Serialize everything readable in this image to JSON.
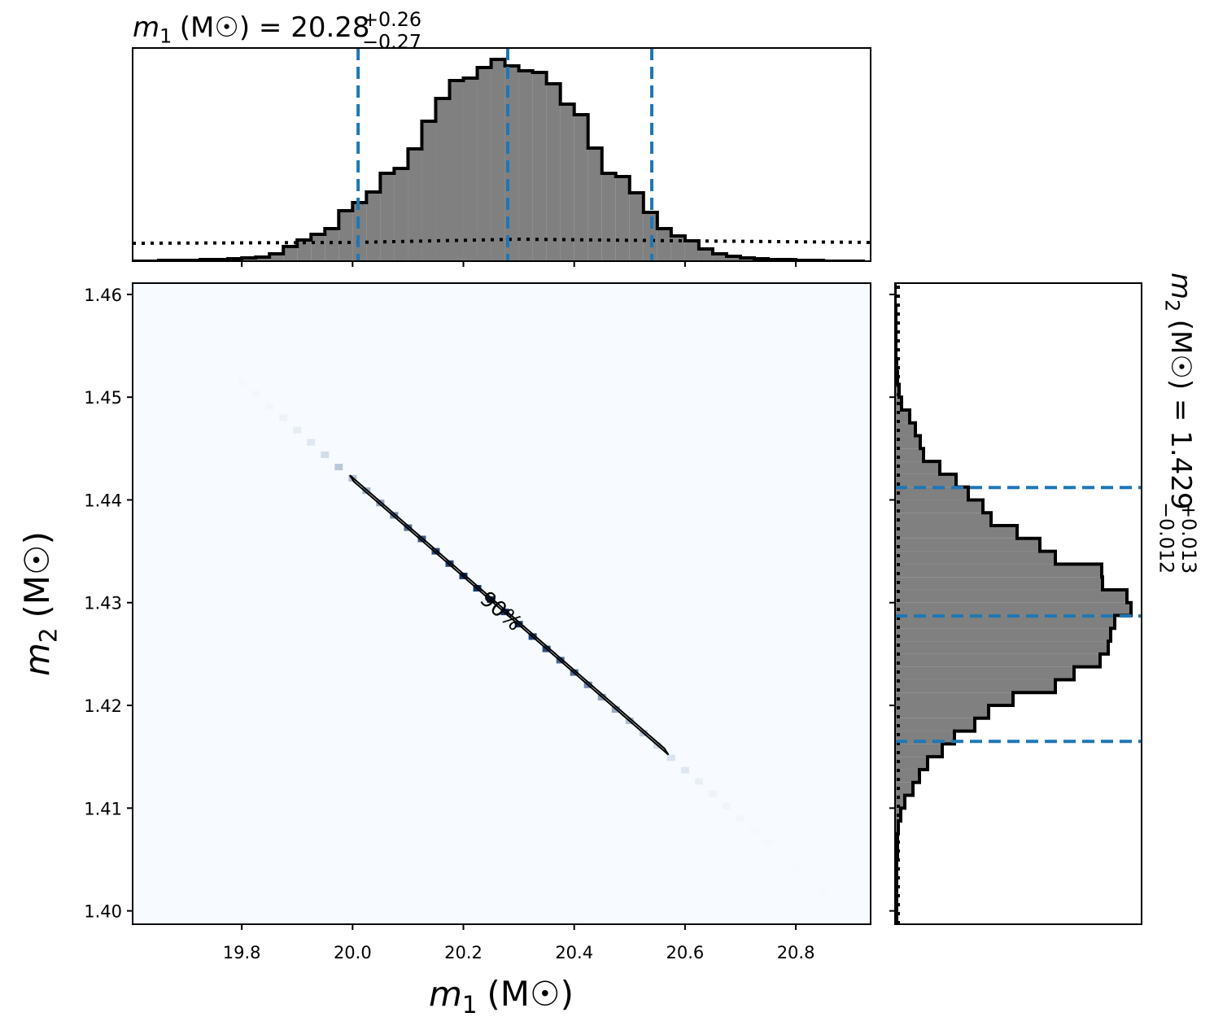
{
  "chart_data": [
    {
      "type": "histogram",
      "orientation": "vertical",
      "title": {
        "variable": "m",
        "subscript": "1",
        "text": "(M☉) = 20.28",
        "upper": "+0.26",
        "lower": "−0.27"
      },
      "bins": [
        19.6,
        19.625,
        19.65,
        19.675,
        19.7,
        19.725,
        19.75,
        19.775,
        19.8,
        19.825,
        19.85,
        19.875,
        19.9,
        19.925,
        19.95,
        19.975,
        20,
        20.025,
        20.05,
        20.075,
        20.1,
        20.125,
        20.15,
        20.175,
        20.2,
        20.225,
        20.25,
        20.275,
        20.3,
        20.325,
        20.35,
        20.375,
        20.4,
        20.425,
        20.45,
        20.475,
        20.5,
        20.525,
        20.55,
        20.575,
        20.6,
        20.625,
        20.65,
        20.675,
        20.7,
        20.725,
        20.75,
        20.775,
        20.8,
        20.825,
        20.85,
        20.875,
        20.9,
        20.925
      ],
      "values": [
        0,
        0,
        1,
        1,
        1,
        2,
        2,
        3,
        4,
        5,
        9,
        18,
        26,
        33,
        40,
        62,
        72,
        85,
        108,
        114,
        138,
        172,
        200,
        222,
        225,
        238,
        248,
        240,
        234,
        232,
        218,
        193,
        180,
        139,
        108,
        104,
        84,
        60,
        40,
        31,
        25,
        15,
        9,
        6,
        4,
        3,
        2,
        2,
        1,
        1,
        0,
        0,
        0
      ],
      "color": "#808080",
      "edgecolor": "#000000",
      "prior": {
        "x": [
          19.603,
          20.0,
          20.3,
          20.6,
          20.935
        ],
        "values": [
          22,
          23,
          27,
          25,
          23
        ]
      },
      "quantiles": [
        20.01,
        20.28,
        20.54
      ],
      "quantile_color": "#1f77b4",
      "xlim": [
        19.603,
        20.935
      ],
      "ylim": [
        0,
        262
      ],
      "xticks": [
        19.8,
        {
          "value": 20.0,
          "label": "20.0"
        },
        20.2,
        20.4,
        20.6,
        20.8
      ]
    },
    {
      "type": "heatmap",
      "x": [
        19.8,
        19.825,
        19.85,
        19.875,
        19.9,
        19.925,
        19.95,
        19.975,
        20,
        20.025,
        20.05,
        20.075,
        20.1,
        20.125,
        20.15,
        20.175,
        20.2,
        20.225,
        20.25,
        20.275,
        20.3,
        20.325,
        20.35,
        20.375,
        20.4,
        20.425,
        20.45,
        20.475,
        20.5,
        20.525,
        20.55,
        20.575,
        20.6,
        20.625,
        20.65,
        20.675,
        20.7,
        20.725,
        20.75,
        20.775,
        20.8,
        20.825,
        20.85,
        20.875,
        20.9
      ],
      "y": [
        1.4515,
        1.4503,
        1.4491,
        1.448,
        1.4468,
        1.4456,
        1.4444,
        1.4432,
        1.4421,
        1.4409,
        1.4397,
        1.4385,
        1.4373,
        1.4362,
        1.435,
        1.4338,
        1.4326,
        1.4314,
        1.4303,
        1.4291,
        1.4279,
        1.4267,
        1.4255,
        1.4244,
        1.4232,
        1.422,
        1.4208,
        1.4196,
        1.4185,
        1.4173,
        1.4161,
        1.4149,
        1.4137,
        1.4126,
        1.4114,
        1.4102,
        1.409,
        1.4078,
        1.4067,
        1.4055,
        1.4043,
        1.4031,
        1.4019,
        1.4008,
        1.3996
      ],
      "values": [
        0.01,
        0.02,
        0.02,
        0.04,
        0.07,
        0.1,
        0.15,
        0.25,
        0.3,
        0.35,
        0.45,
        0.55,
        0.68,
        0.8,
        0.88,
        0.9,
        0.95,
        0.98,
        1.0,
        0.96,
        0.93,
        0.92,
        0.85,
        0.75,
        0.7,
        0.55,
        0.43,
        0.4,
        0.3,
        0.22,
        0.15,
        0.12,
        0.1,
        0.06,
        0.04,
        0.03,
        0.02,
        0.01,
        0.01,
        0.005,
        0.005,
        0.003,
        0.003,
        0.002,
        0.002
      ],
      "colormap": [
        "#f7fbff",
        "#08306b"
      ],
      "contour": {
        "label": "90%",
        "x": [
          19.995,
          20.002,
          20.57,
          20.563
        ],
        "y": [
          1.4424,
          1.4418,
          1.4152,
          1.4158
        ]
      },
      "xlim": [
        19.603,
        20.935
      ],
      "ylim": [
        1.3987,
        1.4611
      ],
      "xticks": [
        19.8,
        {
          "value": 20.0,
          "label": "20.0"
        },
        20.2,
        20.4,
        20.6,
        20.8
      ],
      "yticks": [
        {
          "value": 1.4,
          "label": "1.40"
        },
        1.41,
        1.42,
        1.43,
        1.44,
        1.45,
        1.46
      ],
      "xlabel": {
        "variable": "m",
        "subscript": "1",
        "text": "(M☉)"
      },
      "ylabel": {
        "variable": "m",
        "subscript": "2",
        "text": "(M☉)"
      }
    },
    {
      "type": "histogram",
      "orientation": "horizontal",
      "title": {
        "variable": "m",
        "subscript": "2",
        "text": "(M☉) = 1.429",
        "upper": "+0.013",
        "lower": "−0.012"
      },
      "bins": [
        1.3975,
        1.39875,
        1.4,
        1.40125,
        1.4025,
        1.40375,
        1.405,
        1.40625,
        1.4075,
        1.40875,
        1.41,
        1.41125,
        1.4125,
        1.41375,
        1.415,
        1.41625,
        1.4175,
        1.41875,
        1.42,
        1.42125,
        1.4225,
        1.42375,
        1.425,
        1.42625,
        1.4275,
        1.42875,
        1.43,
        1.43125,
        1.4325,
        1.43375,
        1.435,
        1.43625,
        1.4375,
        1.43875,
        1.44,
        1.44125,
        1.4425,
        1.44375,
        1.445,
        1.44625,
        1.4475,
        1.44875,
        1.45,
        1.45125,
        1.4525,
        1.45375,
        1.455,
        1.45625,
        1.4575,
        1.45875,
        1.46,
        1.46125,
        1.4625
      ],
      "values": [
        1,
        2,
        2,
        2,
        2,
        2,
        3,
        3,
        4,
        7,
        12,
        22,
        30,
        40,
        58,
        73,
        98,
        115,
        145,
        197,
        220,
        252,
        262,
        265,
        270,
        290,
        285,
        255,
        254,
        197,
        178,
        150,
        118,
        108,
        90,
        75,
        55,
        35,
        31,
        25,
        18,
        8,
        5,
        3,
        2,
        1,
        1,
        1,
        1,
        0,
        0,
        0
      ],
      "color": "#808080",
      "edgecolor": "#000000",
      "prior": {
        "y": [
          1.3987,
          1.43,
          1.4611
        ],
        "values": [
          4,
          4,
          4
        ]
      },
      "quantiles": [
        1.4412,
        1.4287,
        1.4165
      ],
      "quantile_color": "#1f77b4",
      "xlim": [
        0,
        303
      ],
      "ylim": [
        1.3987,
        1.4611
      ],
      "yticks": [
        {
          "value": 1.4,
          "label": "1.40"
        },
        1.41,
        1.42,
        1.43,
        1.44,
        1.45,
        1.46
      ]
    }
  ]
}
